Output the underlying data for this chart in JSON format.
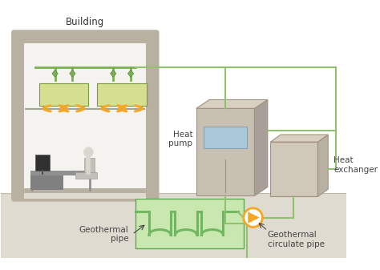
{
  "bg_color": "#ffffff",
  "ground_color": "#e0dbd0",
  "building_outer_color": "#b8b0a0",
  "building_inner_color": "#f5f3f0",
  "hvac_color": "#d4e090",
  "hvac_connector_color": "#7ab050",
  "orange_color": "#f5a623",
  "heat_pump_front": "#c8c0b0",
  "heat_pump_side": "#a8a098",
  "heat_exchanger_color": "#d0c8b8",
  "geo_bg_color": "#c8e8b0",
  "geo_pipe_color": "#70b860",
  "pipe_line_color": "#90c070",
  "desk_color": "#909090",
  "labels": {
    "building": "Building",
    "heat_pump": "Heat\npump",
    "heat_exchanger": "Heat\nexchanger",
    "geo_pipe": "Geothermal\npipe",
    "geo_circ": "Geothermal\ncirculate pipe"
  },
  "font_size": 7.5
}
